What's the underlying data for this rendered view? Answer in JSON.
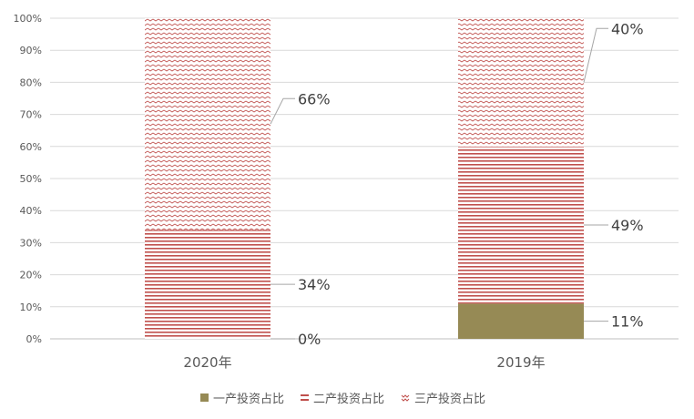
{
  "chart_data": {
    "type": "bar",
    "stacked": true,
    "percent": true,
    "categories": [
      "2020年",
      "2019年"
    ],
    "series": [
      {
        "name": "一产投资占比",
        "values": [
          0,
          11
        ],
        "labels": [
          "0%",
          "11%"
        ],
        "color": "#968a55",
        "pattern": "solid"
      },
      {
        "name": "二产投资占比",
        "values": [
          34,
          49
        ],
        "labels": [
          "34%",
          "49%"
        ],
        "color": "#c0504d",
        "pattern": "horizontal-lines"
      },
      {
        "name": "三产投资占比",
        "values": [
          66,
          40
        ],
        "labels": [
          "66%",
          "40%"
        ],
        "color": "#c0504d",
        "pattern": "zigzag"
      }
    ],
    "yticks": [
      "0%",
      "10%",
      "20%",
      "30%",
      "40%",
      "50%",
      "60%",
      "70%",
      "80%",
      "90%",
      "100%"
    ],
    "ylim": [
      0,
      100
    ],
    "grid": true,
    "legend": "bottom",
    "title": "",
    "xlabel": "",
    "ylabel": ""
  }
}
